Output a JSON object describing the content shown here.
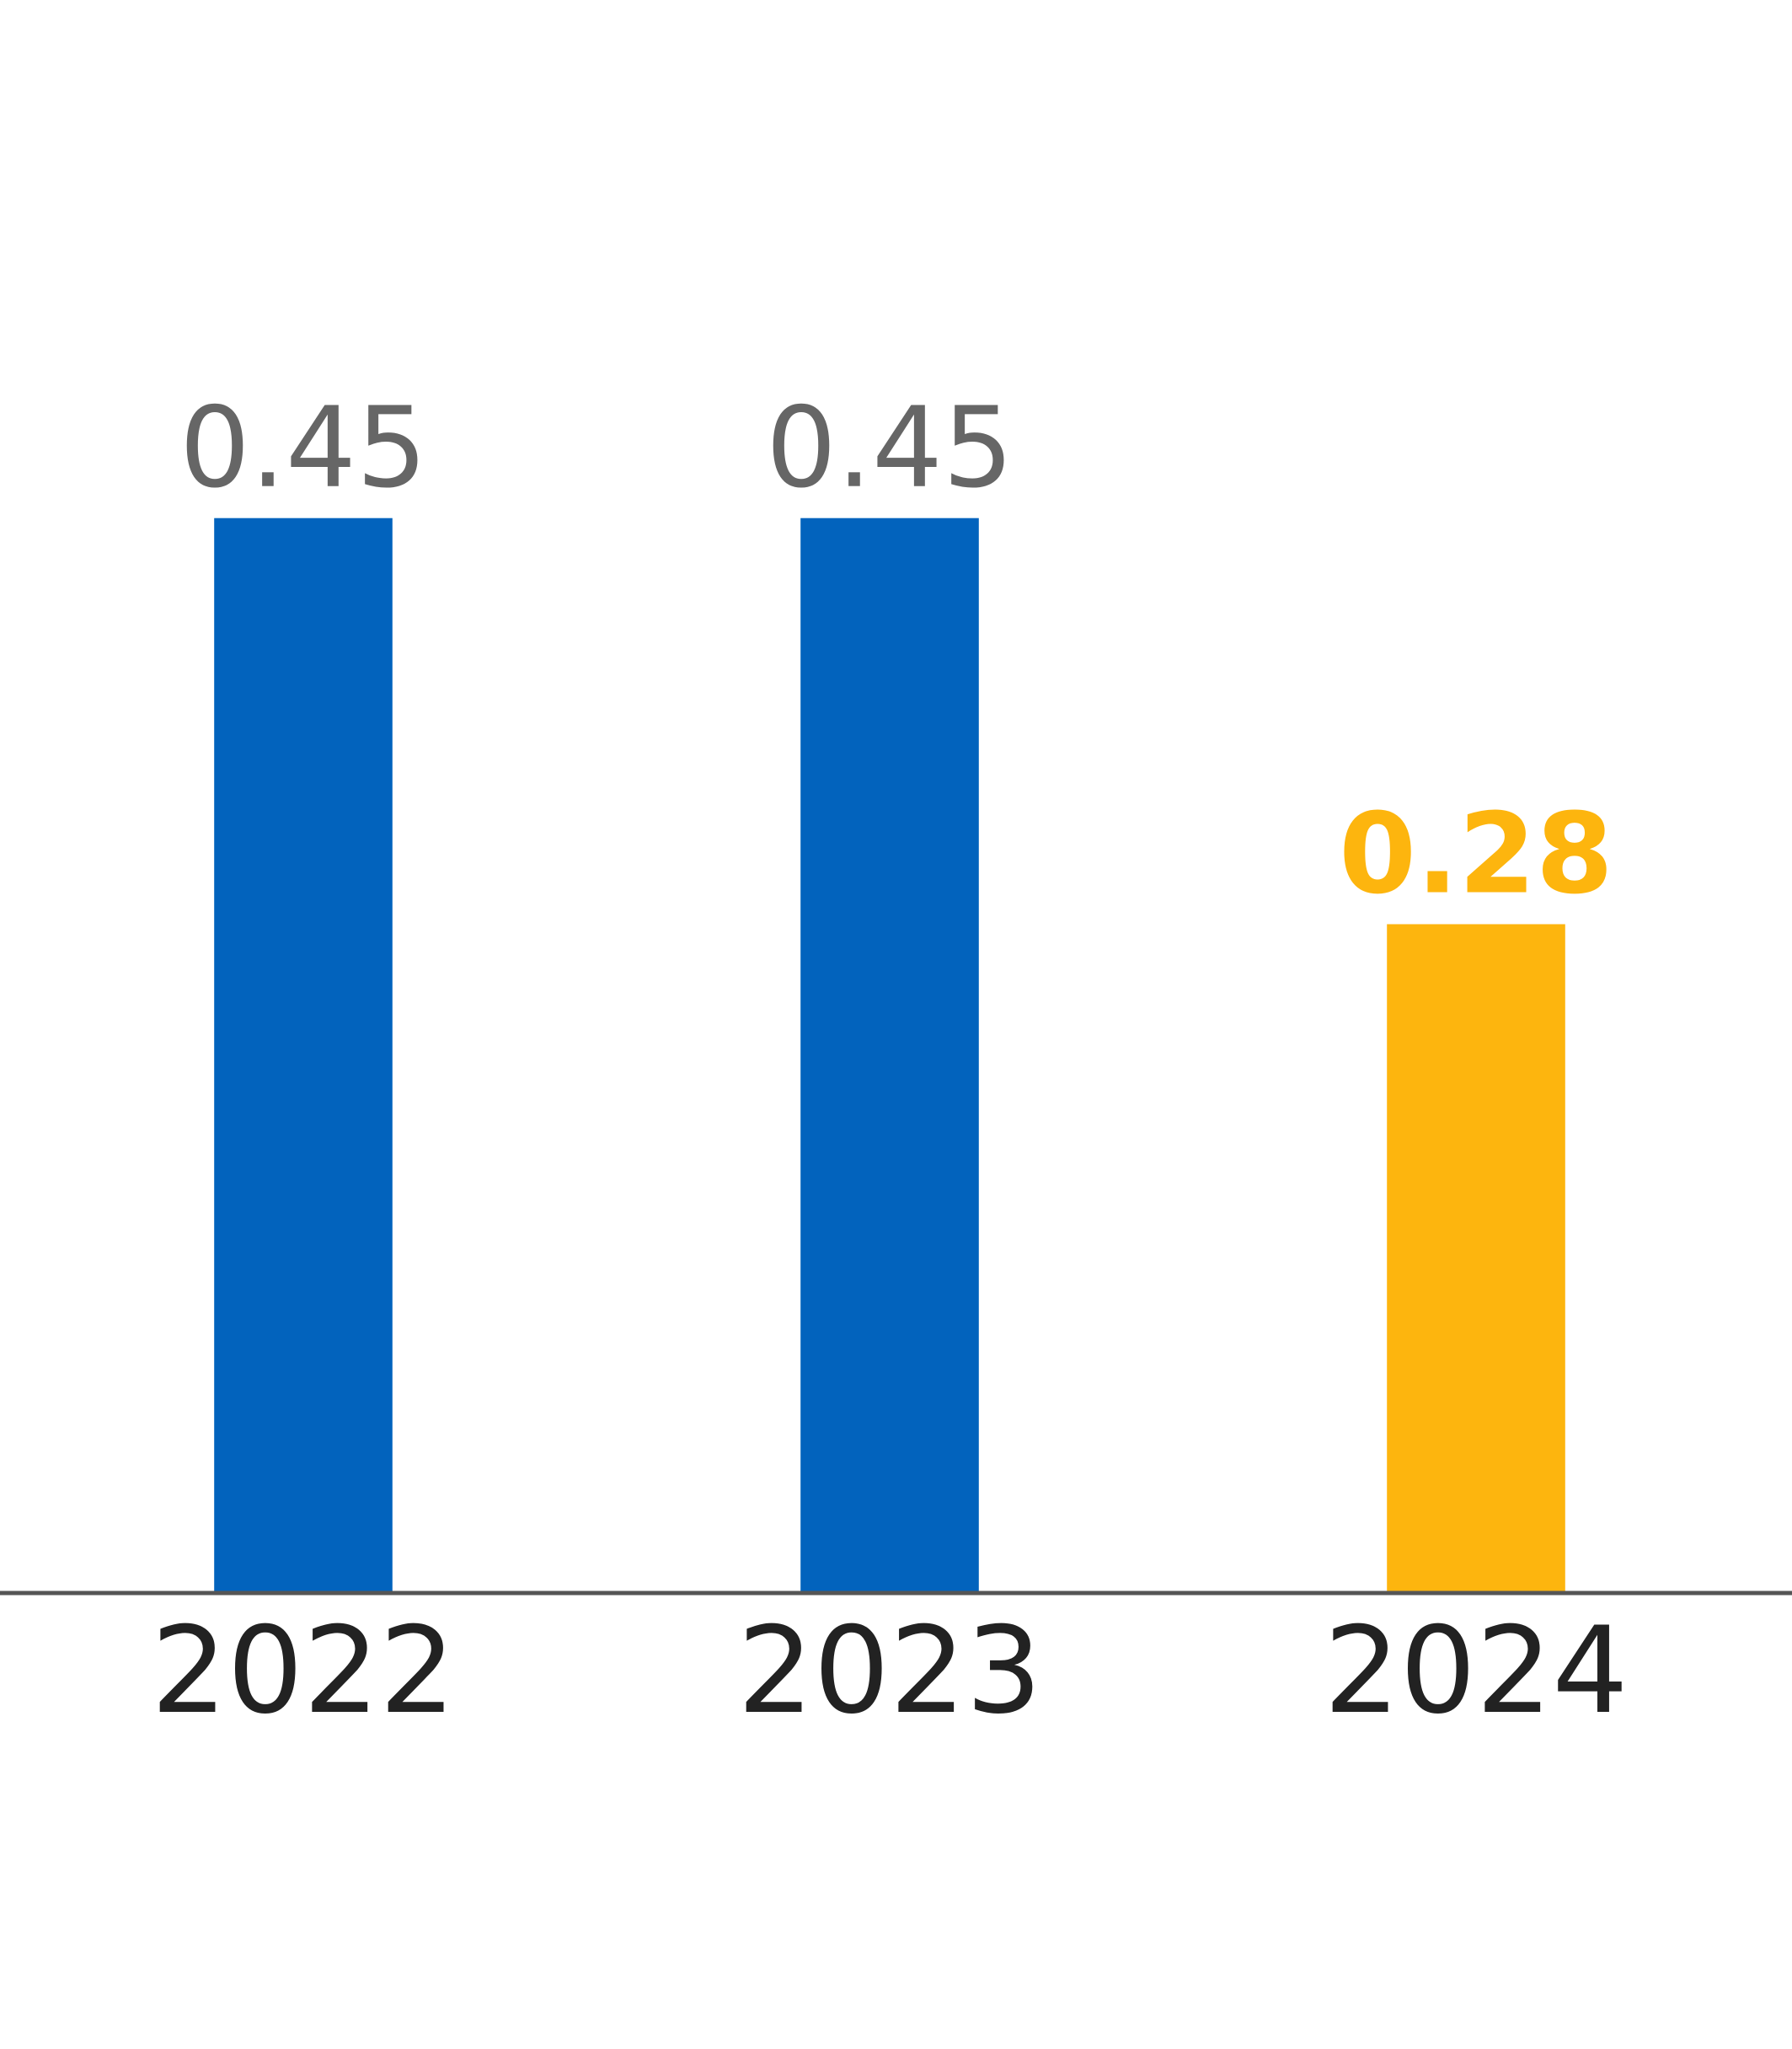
{
  "chart_data": {
    "type": "bar",
    "categories": [
      "2022",
      "2023",
      "2024"
    ],
    "values": [
      0.45,
      0.45,
      0.28
    ],
    "colors": [
      "#0263bd",
      "#0263bd",
      "#fdb50e"
    ],
    "label_colors": [
      "#666666",
      "#666666",
      "#fdb50e"
    ],
    "ylim": [
      0,
      0.5
    ]
  }
}
